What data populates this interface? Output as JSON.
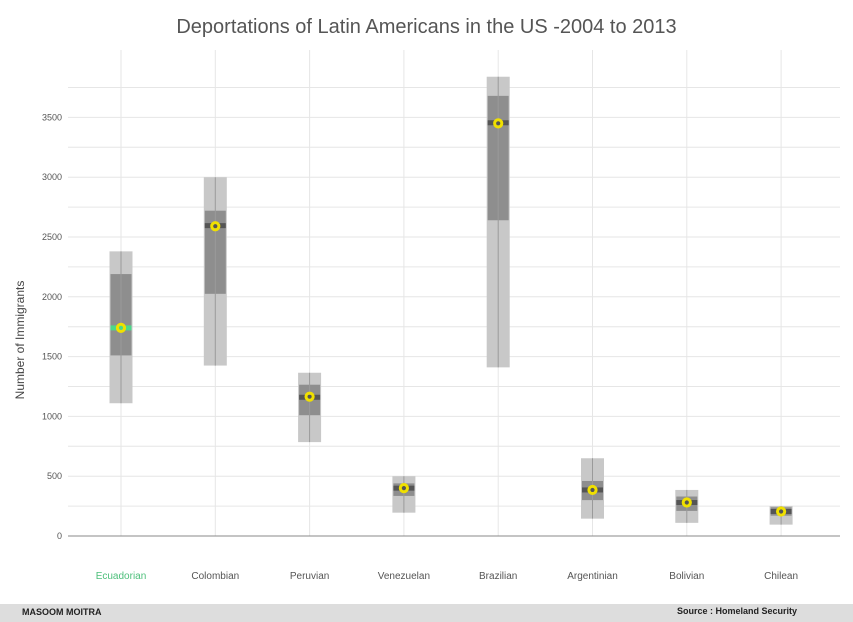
{
  "chart_data": {
    "type": "box",
    "title": "Deportations of Latin Americans in the US -2004 to 2013",
    "ylabel": "Number of Immigrants",
    "xlabel": "",
    "ylim": [
      0,
      3850
    ],
    "yticks": [
      0,
      500,
      1000,
      1500,
      2000,
      2500,
      3000,
      3500
    ],
    "grid": true,
    "categories": [
      "Ecuadorian",
      "Colombian",
      "Peruvian",
      "Venezuelan",
      "Brazilian",
      "Argentinian",
      "Bolivian",
      "Chilean"
    ],
    "highlight_category": "Ecuadorian",
    "boxes": [
      {
        "min": 1110,
        "q1": 1510,
        "median": 1740,
        "q3": 2190,
        "max": 2380,
        "mean": 1740
      },
      {
        "min": 1425,
        "q1": 2025,
        "median": 2595,
        "q3": 2720,
        "max": 3000,
        "mean": 2590
      },
      {
        "min": 785,
        "q1": 1010,
        "median": 1160,
        "q3": 1265,
        "max": 1365,
        "mean": 1165
      },
      {
        "min": 195,
        "q1": 335,
        "median": 400,
        "q3": 440,
        "max": 500,
        "mean": 400
      },
      {
        "min": 1410,
        "q1": 2640,
        "median": 3455,
        "q3": 3680,
        "max": 3840,
        "mean": 3450
      },
      {
        "min": 145,
        "q1": 300,
        "median": 385,
        "q3": 460,
        "max": 650,
        "mean": 385
      },
      {
        "min": 110,
        "q1": 210,
        "median": 280,
        "q3": 330,
        "max": 385,
        "mean": 280
      },
      {
        "min": 95,
        "q1": 170,
        "median": 205,
        "q3": 240,
        "max": 250,
        "mean": 205
      }
    ]
  },
  "colors": {
    "outer_box": "#c8c8c8",
    "inner_box": "#8e8e8e",
    "median_bar": "#555555",
    "highlight_median": "#4cd98a",
    "mean_marker": "#f0e000",
    "highlight_label": "#4cbf7a",
    "label": "#555555",
    "grid": "#e6e6e6",
    "axis": "#888888"
  },
  "footer": {
    "author": "MASOOM MOITRA",
    "source": "Source : Homeland Security"
  }
}
